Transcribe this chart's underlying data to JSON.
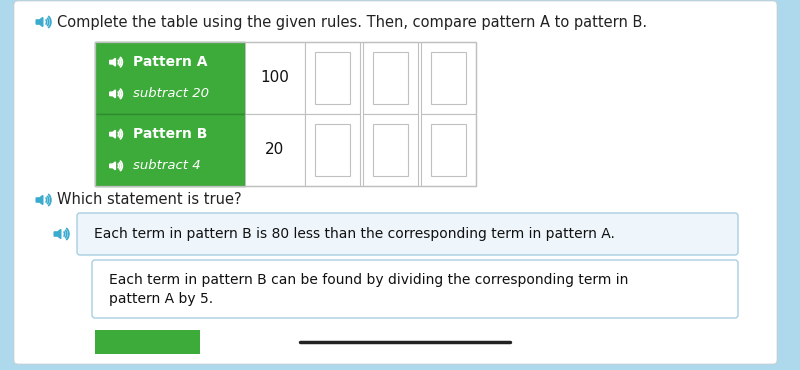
{
  "bg_color": "#aed8ec",
  "panel_color": "#ffffff",
  "panel_border": "#cccccc",
  "title": "Complete the table using the given rules. Then, compare pattern A to pattern B.",
  "title_fontsize": 10.5,
  "text_color": "#222222",
  "spk_color": "#3aabcf",
  "green": "#3dab3a",
  "green_border": "#2e8c2e",
  "row_a_1": "Pattern A",
  "row_a_2": "subtract 20",
  "row_b_1": "Pattern B",
  "row_b_2": "subtract 4",
  "row_a_val": "100",
  "row_b_val": "20",
  "q_text": "Which statement is true?",
  "q_fontsize": 10.5,
  "ans1": "Each term in pattern B is 80 less than the corresponding term in pattern A.",
  "ans2a": "Each term in pattern B can be found by dividing the corresponding term in",
  "ans2b": "pattern A by 5.",
  "ans_fontsize": 10.0,
  "ans1_bg": "#eef6fc",
  "ans_border": "#a8cfe0",
  "cell_border": "#c0c0c0",
  "white": "#ffffff",
  "black": "#111111",
  "bottom_line": "#222222",
  "green_btn": "#3dab3a"
}
